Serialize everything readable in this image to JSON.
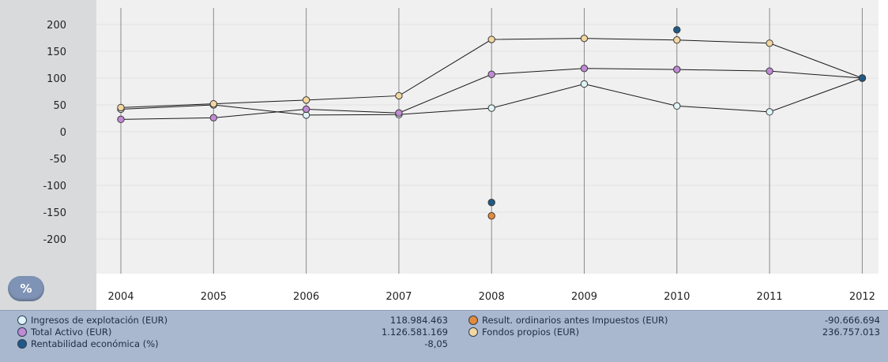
{
  "chart_data": {
    "type": "line",
    "x": [
      2004,
      2005,
      2006,
      2007,
      2008,
      2009,
      2010,
      2011,
      2012
    ],
    "y_ticks": [
      200,
      150,
      100,
      50,
      0,
      -50,
      -100,
      -150,
      -200
    ],
    "ylim": [
      -250,
      200
    ],
    "grid": true,
    "series": [
      {
        "name": "Ingresos de explotación (EUR)",
        "color": "#dff4f6",
        "values": [
          42,
          50,
          31,
          32,
          44,
          89,
          48,
          37,
          100
        ],
        "line": true
      },
      {
        "name": "Total Activo (EUR)",
        "color": "#c08ad4",
        "values": [
          23,
          26,
          42,
          35,
          107,
          118,
          116,
          113,
          100
        ],
        "line": true
      },
      {
        "name": "Fondos propios (EUR)",
        "color": "#f2d7a0",
        "values": [
          45,
          52,
          59,
          67,
          172,
          174,
          171,
          165,
          100
        ],
        "line": true
      },
      {
        "name": "Result. ordinarios antes Impuestos (EUR)",
        "color": "#e58a3a",
        "values": [
          null,
          null,
          null,
          null,
          -157,
          null,
          null,
          null,
          null
        ],
        "line": false
      },
      {
        "name": "Rentabilidad económica (%)",
        "color": "#1f5a86",
        "values": [
          null,
          null,
          null,
          null,
          -132,
          null,
          190,
          null,
          100
        ],
        "line": false
      }
    ]
  },
  "pct_button_label": "%",
  "legend": {
    "items": [
      {
        "label": "Ingresos de explotación (EUR)",
        "value": "118.984.463",
        "color": "#dff4f6"
      },
      {
        "label": "Total Activo (EUR)",
        "value": "1.126.581.169",
        "color": "#c08ad4"
      },
      {
        "label": "Rentabilidad económica (%)",
        "value": "-8,05",
        "color": "#1f5a86"
      },
      {
        "label": "Result. ordinarios antes Impuestos (EUR)",
        "value": "-90.666.694",
        "color": "#e58a3a"
      },
      {
        "label": "Fondos propios (EUR)",
        "value": "236.757.013",
        "color": "#f2d7a0"
      }
    ]
  }
}
